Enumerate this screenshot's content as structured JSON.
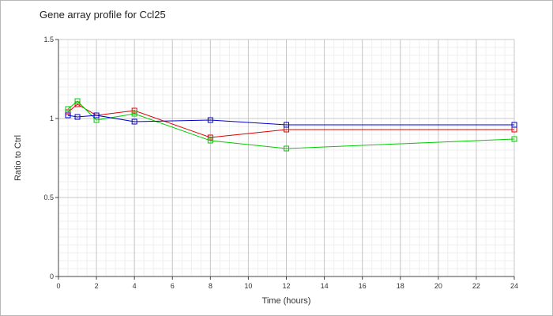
{
  "chart_data": {
    "type": "line",
    "title": "Gene array profile for Ccl25",
    "xlabel": "Time (hours)",
    "ylabel": "Ratio to Ctrl",
    "xlim": [
      0,
      24
    ],
    "ylim": [
      0,
      1.5
    ],
    "x_ticks": [
      "0",
      "2",
      "4",
      "6",
      "8",
      "10",
      "12",
      "14",
      "16",
      "18",
      "20",
      "22",
      "24"
    ],
    "y_ticks": [
      "0",
      "0.5",
      "1",
      "1.5"
    ],
    "grid": true,
    "legend": "none",
    "series": [
      {
        "color": "#e00000",
        "x": [
          0.5,
          1,
          2,
          4,
          8,
          12,
          24
        ],
        "values": [
          1.04,
          1.09,
          1.02,
          1.05,
          0.88,
          0.93,
          0.93
        ]
      },
      {
        "color": "#00cc00",
        "x": [
          0.5,
          1,
          2,
          4,
          8,
          12,
          24
        ],
        "values": [
          1.06,
          1.11,
          0.99,
          1.03,
          0.86,
          0.81,
          0.87
        ]
      },
      {
        "color": "#0000cc",
        "x": [
          0.5,
          1,
          2,
          4,
          8,
          12,
          24
        ],
        "values": [
          1.02,
          1.01,
          1.02,
          0.98,
          0.99,
          0.96,
          0.96
        ]
      }
    ]
  }
}
